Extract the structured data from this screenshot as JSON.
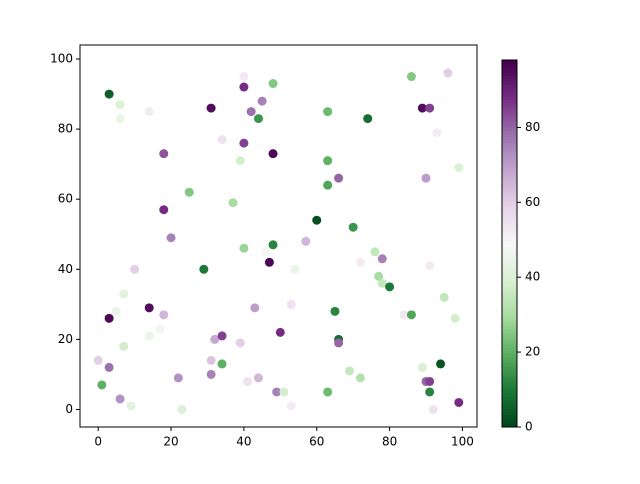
{
  "chart_data": {
    "type": "scatter",
    "x": [
      3,
      6,
      6,
      14,
      31,
      40,
      40,
      48,
      45,
      42,
      44,
      34,
      40,
      48,
      18,
      39,
      25,
      37,
      18,
      20,
      40,
      29,
      48,
      47,
      46,
      54,
      57,
      60,
      63,
      63,
      63,
      66,
      70,
      74,
      86,
      89,
      91,
      96,
      93,
      90,
      99,
      76,
      78,
      77,
      78,
      80,
      72,
      91,
      10,
      7,
      5,
      3,
      14,
      17,
      18,
      14,
      7,
      0,
      3,
      1,
      6,
      9,
      22,
      23,
      31,
      31,
      32,
      34,
      34,
      39,
      41,
      44,
      43,
      50,
      49,
      51,
      53,
      53,
      65,
      66,
      66,
      63,
      69,
      72,
      84,
      86,
      89,
      90,
      91,
      91,
      94,
      92,
      95,
      98,
      99
    ],
    "y": [
      90,
      87,
      83,
      85,
      86,
      95,
      92,
      93,
      88,
      85,
      83,
      77,
      76,
      73,
      73,
      71,
      62,
      59,
      57,
      49,
      46,
      40,
      47,
      42,
      45,
      40,
      48,
      54,
      85,
      71,
      64,
      66,
      52,
      83,
      95,
      86,
      86,
      96,
      79,
      66,
      69,
      45,
      43,
      38,
      36,
      35,
      42,
      41,
      40,
      33,
      28,
      26,
      29,
      23,
      27,
      21,
      18,
      14,
      12,
      7,
      3,
      1,
      9,
      0,
      10,
      14,
      20,
      21,
      13,
      19,
      8,
      9,
      29,
      22,
      5,
      5,
      1,
      30,
      28,
      20,
      19,
      5,
      11,
      9,
      27,
      27,
      12,
      8,
      8,
      5,
      13,
      0,
      32,
      26,
      2
    ],
    "c": [
      5,
      40,
      45,
      52,
      95,
      53,
      88,
      25,
      75,
      78,
      15,
      55,
      85,
      96,
      82,
      38,
      25,
      30,
      88,
      75,
      28,
      10,
      12,
      96,
      48,
      45,
      65,
      2,
      22,
      20,
      18,
      80,
      15,
      8,
      25,
      95,
      85,
      60,
      52,
      70,
      40,
      35,
      75,
      30,
      35,
      10,
      52,
      52,
      60,
      42,
      45,
      96,
      95,
      47,
      65,
      45,
      38,
      60,
      78,
      20,
      72,
      42,
      72,
      40,
      75,
      62,
      68,
      85,
      20,
      60,
      55,
      65,
      70,
      88,
      75,
      38,
      52,
      55,
      12,
      8,
      80,
      22,
      35,
      32,
      53,
      18,
      40,
      80,
      85,
      12,
      3,
      55,
      35,
      38,
      88
    ],
    "colormap": [
      "#00441b",
      "#1b7837",
      "#5aae61",
      "#a6dba0",
      "#d9f0d3",
      "#f7f7f7",
      "#e7d4e8",
      "#c2a5cf",
      "#9970ab",
      "#762a83",
      "#40004b"
    ],
    "clim": [
      0,
      98
    ],
    "cticks": [
      0,
      20,
      40,
      60,
      80
    ],
    "xlim": [
      -5,
      104
    ],
    "ylim": [
      -5,
      104
    ],
    "xticks": [
      0,
      20,
      40,
      60,
      80,
      100
    ],
    "yticks": [
      0,
      20,
      40,
      60,
      80,
      100
    ]
  }
}
